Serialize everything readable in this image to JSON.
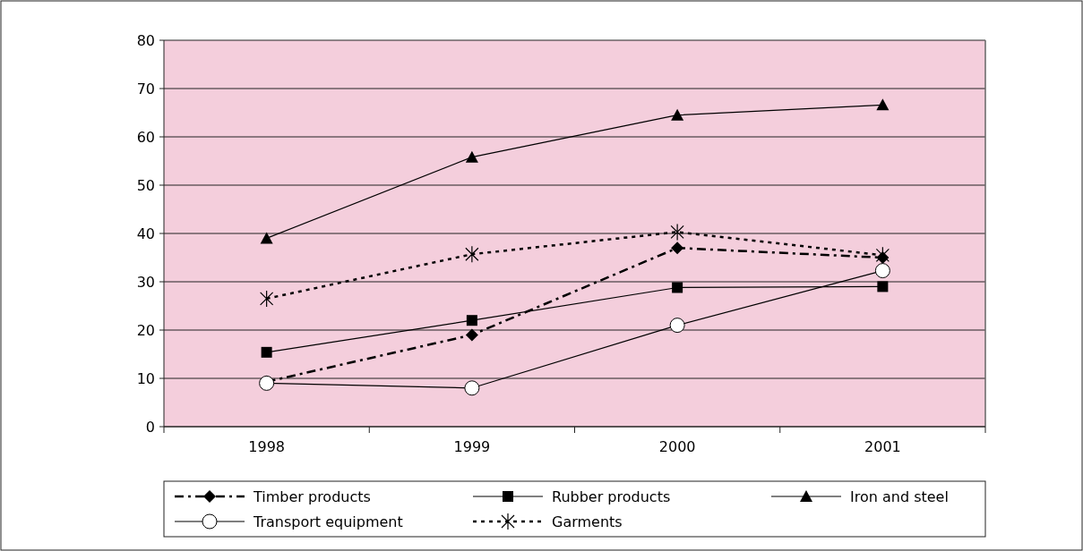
{
  "chart_data": {
    "type": "line",
    "categories": [
      "1998",
      "1999",
      "2000",
      "2001"
    ],
    "series": [
      {
        "name": "Timber products",
        "color": "#000000",
        "values": [
          9.3,
          19,
          37,
          35
        ],
        "marker": "diamond",
        "line_style": "dashed"
      },
      {
        "name": "Rubber products",
        "color": "#000000",
        "values": [
          15.4,
          22,
          28.8,
          29
        ],
        "marker": "square",
        "line_style": "solid"
      },
      {
        "name": "Iron and steel",
        "color": "#000000",
        "values": [
          39,
          55.8,
          64.5,
          66.6
        ],
        "marker": "triangle",
        "line_style": "solid"
      },
      {
        "name": "Transport equipment",
        "color": "#000000",
        "values": [
          9,
          8,
          21,
          32.3
        ],
        "marker": "circle",
        "line_style": "solid"
      },
      {
        "name": "Garments",
        "color": "#000000",
        "values": [
          26.5,
          35.7,
          40.3,
          35.5
        ],
        "marker": "cross",
        "line_style": "dotted"
      }
    ],
    "ylim": [
      0,
      80
    ],
    "yticks": [
      0,
      10,
      20,
      30,
      40,
      50,
      60,
      70,
      80
    ],
    "grid": "y",
    "legend": "bottom"
  }
}
